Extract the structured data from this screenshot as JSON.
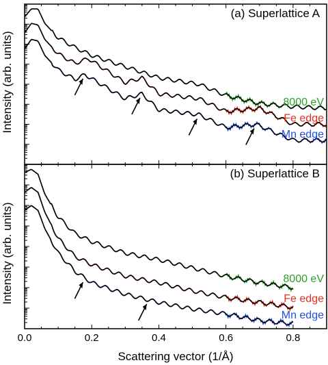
{
  "figure": {
    "xlabel": "Scattering vector (1/Å)",
    "ylabel": "Intensity (arb. units)",
    "x_tick_labels": [
      "0.0",
      "0.2",
      "0.4",
      "0.6",
      "0.8"
    ]
  },
  "chart_data": [
    {
      "type": "line",
      "title": "(a) Superlattice A",
      "xlabel": "Scattering vector (1/Å)",
      "ylabel": "Intensity (arb. units)",
      "xlim": [
        0,
        0.9
      ],
      "ylim": [
        0,
        1
      ],
      "yscale": "log (arbitrary units, offset)",
      "legend_placement": "labels at right end of each curve",
      "colors": {
        "green": "#2aa02a",
        "red": "#e0301e",
        "blue": "#2050e0",
        "fit": "#000000"
      },
      "series": [
        {
          "name": "8000 eV",
          "color": "#2aa02a",
          "offset": 0.0,
          "x": [
            0.0,
            0.02,
            0.04,
            0.06,
            0.1,
            0.15,
            0.2,
            0.3,
            0.4,
            0.52,
            0.6,
            0.7,
            0.8,
            0.9
          ],
          "y": [
            0.92,
            0.97,
            0.97,
            0.88,
            0.79,
            0.73,
            0.68,
            0.61,
            0.54,
            0.5,
            0.43,
            0.38,
            0.36,
            0.35
          ]
        },
        {
          "name": "Fe edge",
          "color": "#e0301e",
          "offset": 0.1,
          "x": [
            0.0,
            0.02,
            0.04,
            0.06,
            0.1,
            0.15,
            0.19,
            0.3,
            0.35,
            0.4,
            0.52,
            0.6,
            0.7,
            0.8,
            0.9
          ],
          "y": [
            0.82,
            0.88,
            0.87,
            0.78,
            0.69,
            0.63,
            0.66,
            0.51,
            0.54,
            0.44,
            0.41,
            0.33,
            0.35,
            0.25,
            0.25
          ]
        },
        {
          "name": "Mn edge",
          "color": "#2050e0",
          "offset": 0.2,
          "x": [
            0.0,
            0.02,
            0.04,
            0.06,
            0.1,
            0.15,
            0.18,
            0.3,
            0.35,
            0.4,
            0.52,
            0.6,
            0.69,
            0.8,
            0.9
          ],
          "y": [
            0.72,
            0.78,
            0.77,
            0.68,
            0.59,
            0.53,
            0.56,
            0.41,
            0.44,
            0.34,
            0.31,
            0.23,
            0.25,
            0.15,
            0.15
          ]
        }
      ],
      "annotation_peaks_x": [
        0.18,
        0.35,
        0.52,
        0.69
      ]
    },
    {
      "type": "line",
      "title": "(b) Superlattice B",
      "xlabel": "Scattering vector (1/Å)",
      "ylabel": "Intensity (arb. units)",
      "xlim": [
        0,
        0.9
      ],
      "ylim": [
        0,
        1
      ],
      "yscale": "log (arbitrary units, offset)",
      "legend_placement": "labels at right end of each curve",
      "colors": {
        "green": "#2aa02a",
        "red": "#e0301e",
        "blue": "#2050e0",
        "fit": "#000000"
      },
      "series": [
        {
          "name": "8000 eV",
          "color": "#2aa02a",
          "offset": 0.0,
          "x": [
            0.0,
            0.02,
            0.04,
            0.06,
            0.1,
            0.15,
            0.2,
            0.3,
            0.4,
            0.5,
            0.6,
            0.7,
            0.8
          ],
          "y": [
            0.95,
            0.97,
            0.94,
            0.82,
            0.68,
            0.58,
            0.53,
            0.46,
            0.42,
            0.37,
            0.32,
            0.28,
            0.25
          ]
        },
        {
          "name": "Fe edge",
          "color": "#e0301e",
          "offset": 0.12,
          "x": [
            0.0,
            0.02,
            0.04,
            0.06,
            0.1,
            0.15,
            0.2,
            0.3,
            0.4,
            0.5,
            0.6,
            0.7,
            0.8
          ],
          "y": [
            0.83,
            0.86,
            0.83,
            0.71,
            0.55,
            0.44,
            0.39,
            0.32,
            0.28,
            0.23,
            0.19,
            0.16,
            0.13
          ]
        },
        {
          "name": "Mn edge",
          "color": "#2050e0",
          "offset": 0.24,
          "x": [
            0.0,
            0.02,
            0.04,
            0.06,
            0.1,
            0.15,
            0.2,
            0.3,
            0.4,
            0.5,
            0.6,
            0.7,
            0.8
          ],
          "y": [
            0.72,
            0.75,
            0.72,
            0.61,
            0.46,
            0.35,
            0.28,
            0.21,
            0.16,
            0.12,
            0.09,
            0.05,
            0.03
          ]
        }
      ],
      "annotation_peaks_x": [
        0.18,
        0.37
      ]
    }
  ]
}
